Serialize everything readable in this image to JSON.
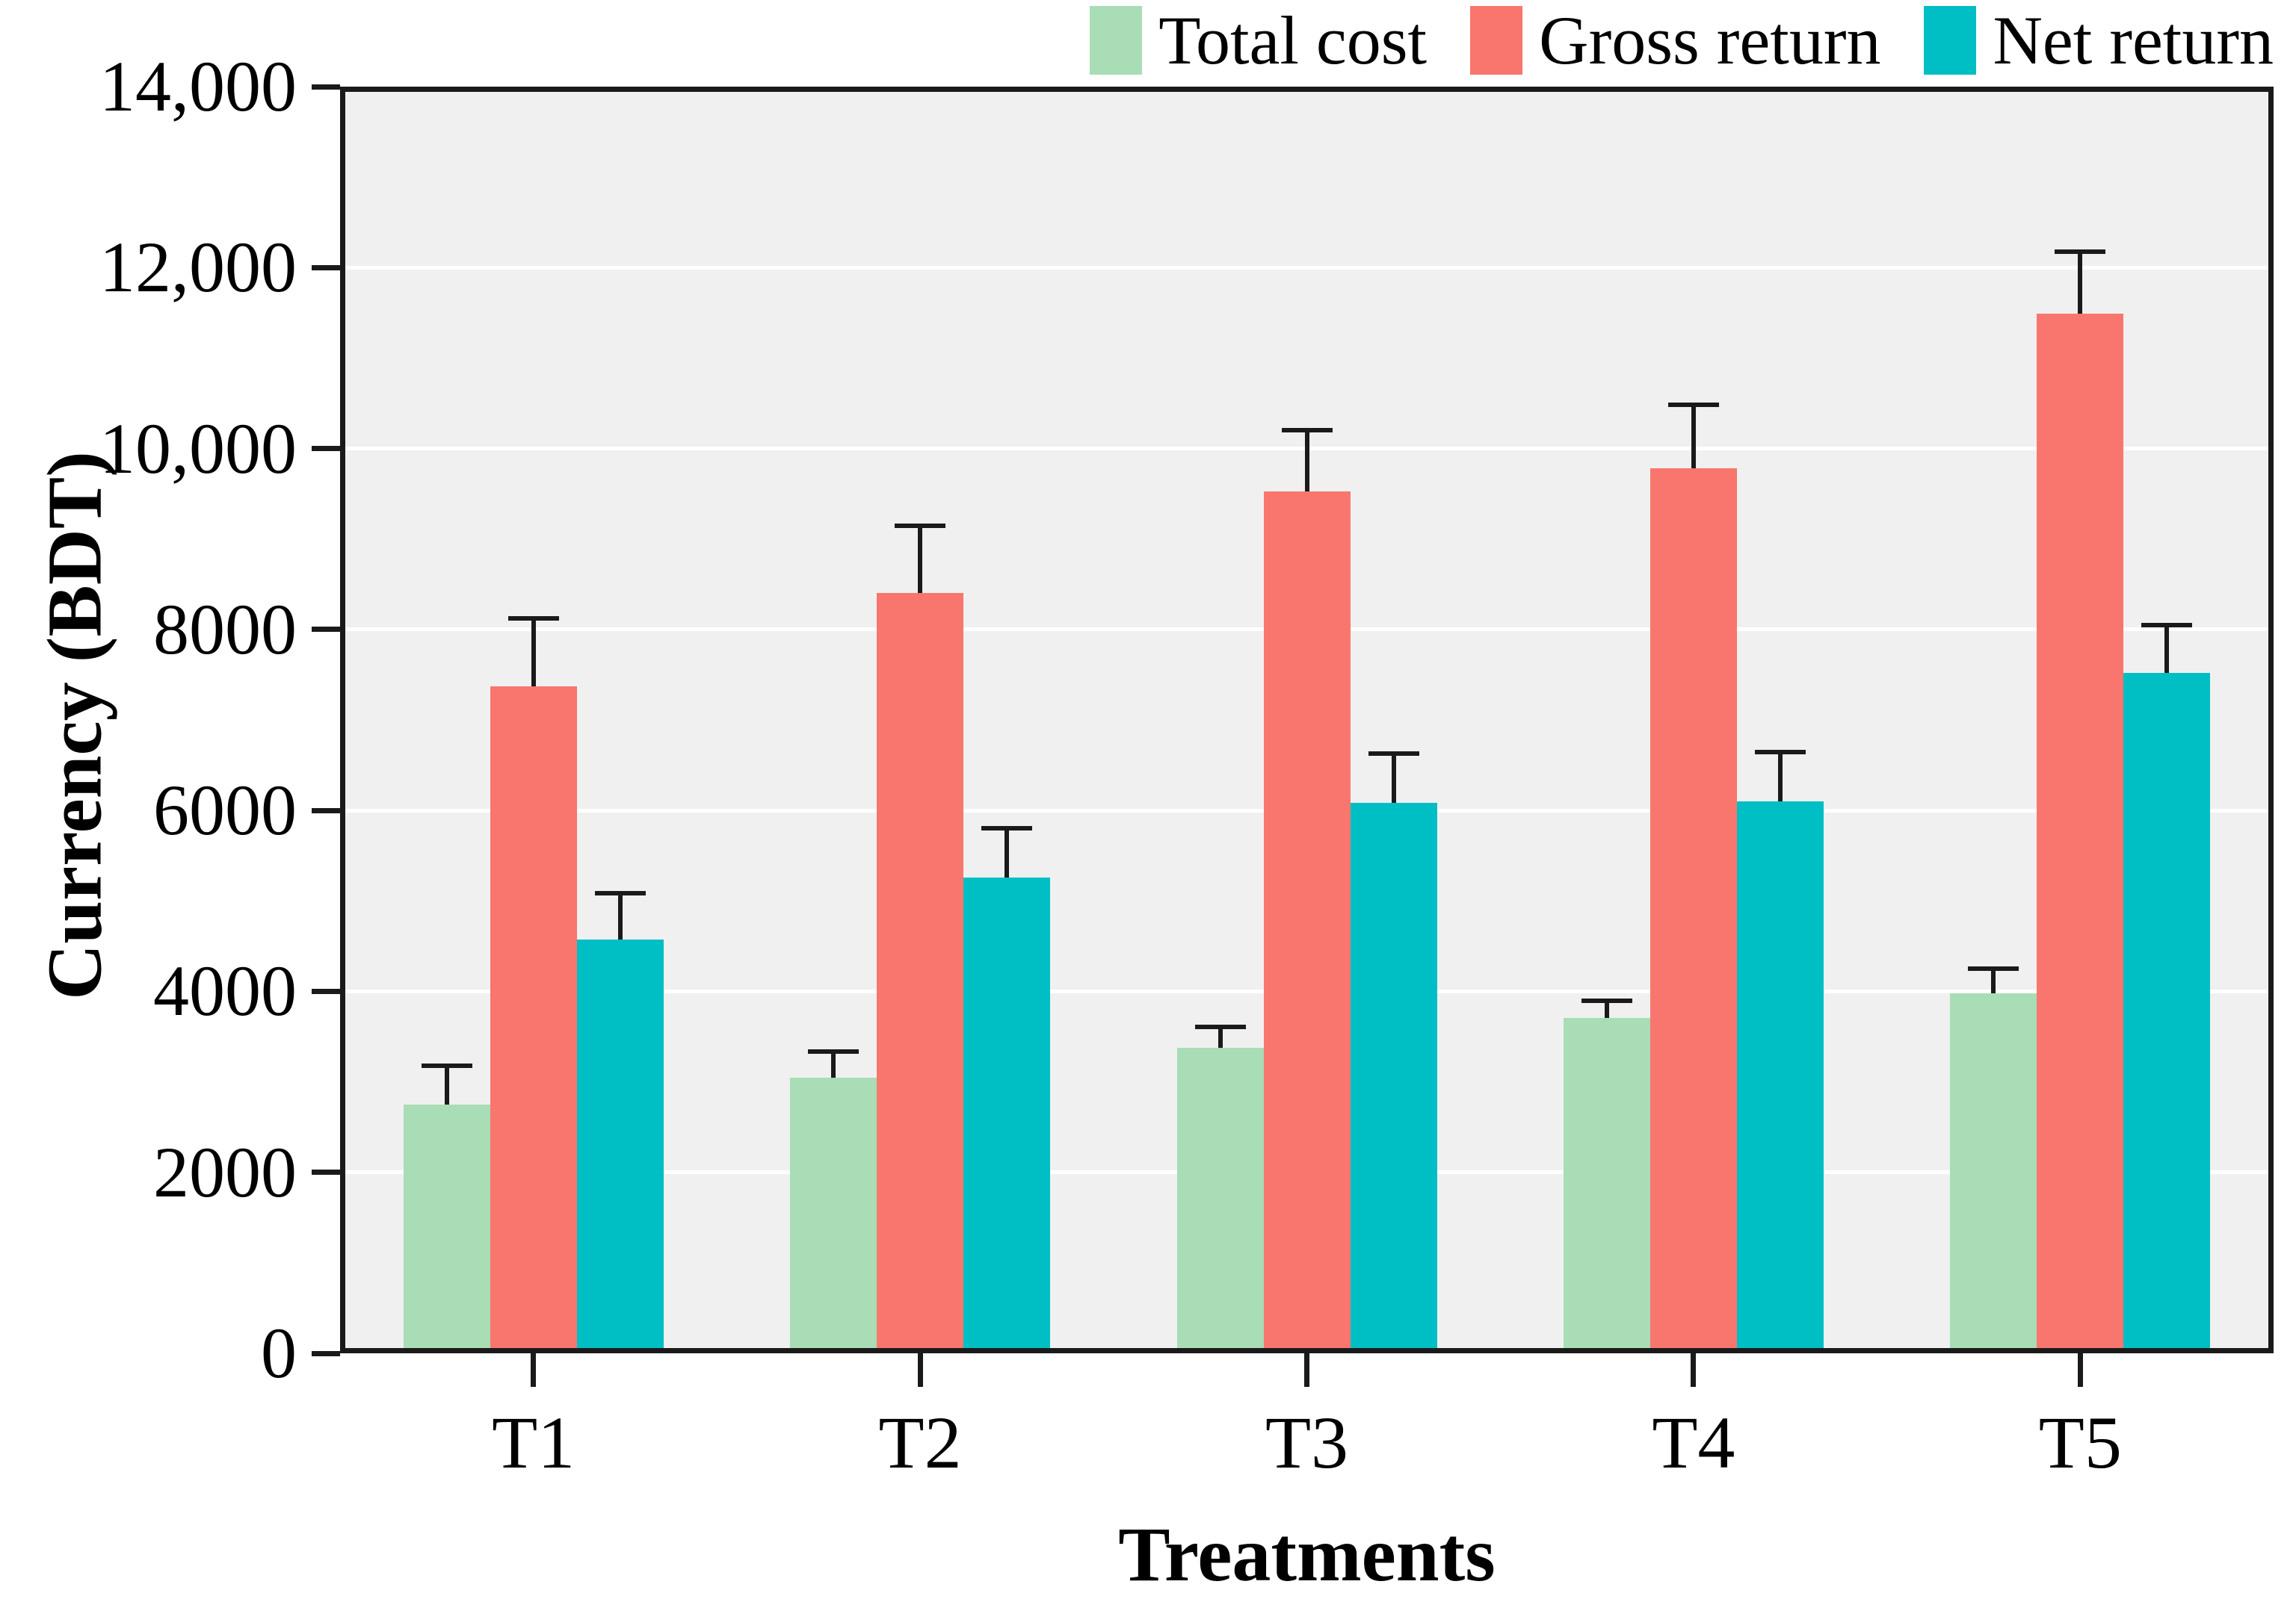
{
  "chart_data": {
    "type": "bar",
    "title": "",
    "xlabel": "Treatments",
    "ylabel": "Currency (BDT)",
    "ylim": [
      0,
      14000
    ],
    "grid": true,
    "grid_interval": 2000,
    "legend_position": "top-right",
    "panel_bg": "#F0F0F0",
    "grid_color": "#FFFFFF",
    "axis_color": "#1A1A1A",
    "categories": [
      "T1",
      "T2",
      "T3",
      "T4",
      "T5"
    ],
    "y_tick_values": [
      0,
      2000,
      4000,
      6000,
      8000,
      10000,
      12000,
      14000
    ],
    "y_tick_labels": [
      "0",
      "2000",
      "4000",
      "6000",
      "8000",
      "10,000",
      "12,000",
      "14,000"
    ],
    "series": [
      {
        "name": "Total cost",
        "color": "#A8DDB5",
        "values": [
          2750,
          3050,
          3380,
          3710,
          3980
        ],
        "error_upper": [
          400,
          260,
          200,
          160,
          250
        ]
      },
      {
        "name": "Gross return",
        "color": "#F8766D",
        "values": [
          7370,
          8400,
          9530,
          9780,
          11490
        ],
        "error_upper": [
          730,
          720,
          650,
          680,
          660
        ]
      },
      {
        "name": "Net return",
        "color": "#00BFC4",
        "values": [
          4570,
          5260,
          6080,
          6100,
          7520
        ],
        "error_upper": [
          490,
          520,
          520,
          520,
          500
        ]
      }
    ]
  }
}
